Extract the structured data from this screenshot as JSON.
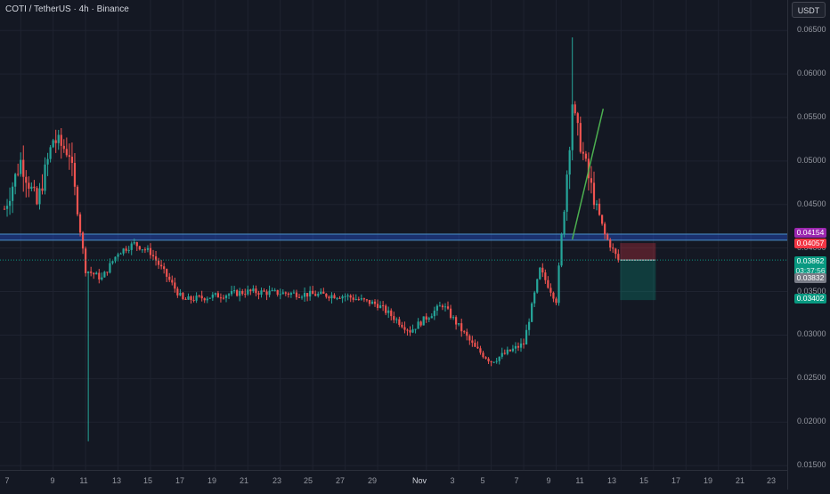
{
  "header": {
    "title": "COTI / TetherUS · 4h · Binance",
    "currency_button": "USDT"
  },
  "chart_data": {
    "type": "candlestick",
    "symbol": "COTI / TetherUS",
    "interval": "4h",
    "exchange": "Binance",
    "ylim": [
      0.0145,
      0.0685
    ],
    "y_ticks": [
      "0.06500",
      "0.06000",
      "0.05500",
      "0.05000",
      "0.04500",
      "0.04000",
      "0.03500",
      "0.03000",
      "0.02500",
      "0.02000",
      "0.01500"
    ],
    "x_ticks": [
      "7",
      "9",
      "11",
      "13",
      "15",
      "17",
      "19",
      "21",
      "23",
      "25",
      "27",
      "29",
      "Nov",
      "3",
      "5",
      "7",
      "9",
      "11",
      "13",
      "15",
      "17",
      "19",
      "21",
      "23"
    ],
    "key_points": [
      {
        "date": "Oct 6",
        "price": 0.0445
      },
      {
        "date": "Oct 7",
        "price": 0.05
      },
      {
        "date": "Oct 8",
        "price": 0.045
      },
      {
        "date": "Oct 9",
        "price": 0.0525
      },
      {
        "date": "Oct 10",
        "price": 0.051
      },
      {
        "date": "Oct 11",
        "price": 0.0375
      },
      {
        "date": "Oct 12",
        "price": 0.0365
      },
      {
        "date": "Oct 13",
        "price": 0.0395
      },
      {
        "date": "Oct 14",
        "price": 0.0405
      },
      {
        "date": "Oct 15",
        "price": 0.0395
      },
      {
        "date": "Oct 17",
        "price": 0.034
      },
      {
        "date": "Oct 21",
        "price": 0.035
      },
      {
        "date": "Oct 27",
        "price": 0.0345
      },
      {
        "date": "Oct 29",
        "price": 0.0335
      },
      {
        "date": "Oct 31",
        "price": 0.0305
      },
      {
        "date": "Nov 2",
        "price": 0.0335
      },
      {
        "date": "Nov 4",
        "price": 0.0285
      },
      {
        "date": "Nov 5",
        "price": 0.027
      },
      {
        "date": "Nov 7",
        "price": 0.029
      },
      {
        "date": "Nov 8",
        "price": 0.0375
      },
      {
        "date": "Nov 9",
        "price": 0.034
      },
      {
        "date": "Nov 10",
        "price": 0.056
      },
      {
        "date": "Nov 11",
        "price": 0.048
      },
      {
        "date": "Nov 12",
        "price": 0.0415
      },
      {
        "date": "Nov 12 20:00",
        "price": 0.0386
      }
    ],
    "spike_low": {
      "date": "Oct 11",
      "price": 0.0178
    },
    "spike_high": {
      "date": "Nov 10",
      "price": 0.0642
    },
    "support_zone": [
      0.0409,
      0.0416
    ],
    "trend_line": {
      "from": {
        "date": "Nov 10",
        "price": 0.041
      },
      "to": {
        "date": "Nov 11",
        "price": 0.056
      }
    },
    "position": {
      "entry": 0.03862,
      "stop": 0.04057,
      "target": 0.03402
    },
    "price_labels": [
      {
        "text": "0.04154",
        "color": "#9c27b0"
      },
      {
        "text": "0.04057",
        "color": "#f23645"
      },
      {
        "text": "0.03862",
        "color": "#089981",
        "sub": "03:37:56"
      },
      {
        "text": "0.03832",
        "color": "#787b86"
      },
      {
        "text": "0.03402",
        "color": "#089981"
      }
    ],
    "colors": {
      "up": "#26a69a",
      "down": "#ef5350",
      "background": "#141823",
      "zone": "#2962ff",
      "trend": "#4caf50"
    }
  }
}
